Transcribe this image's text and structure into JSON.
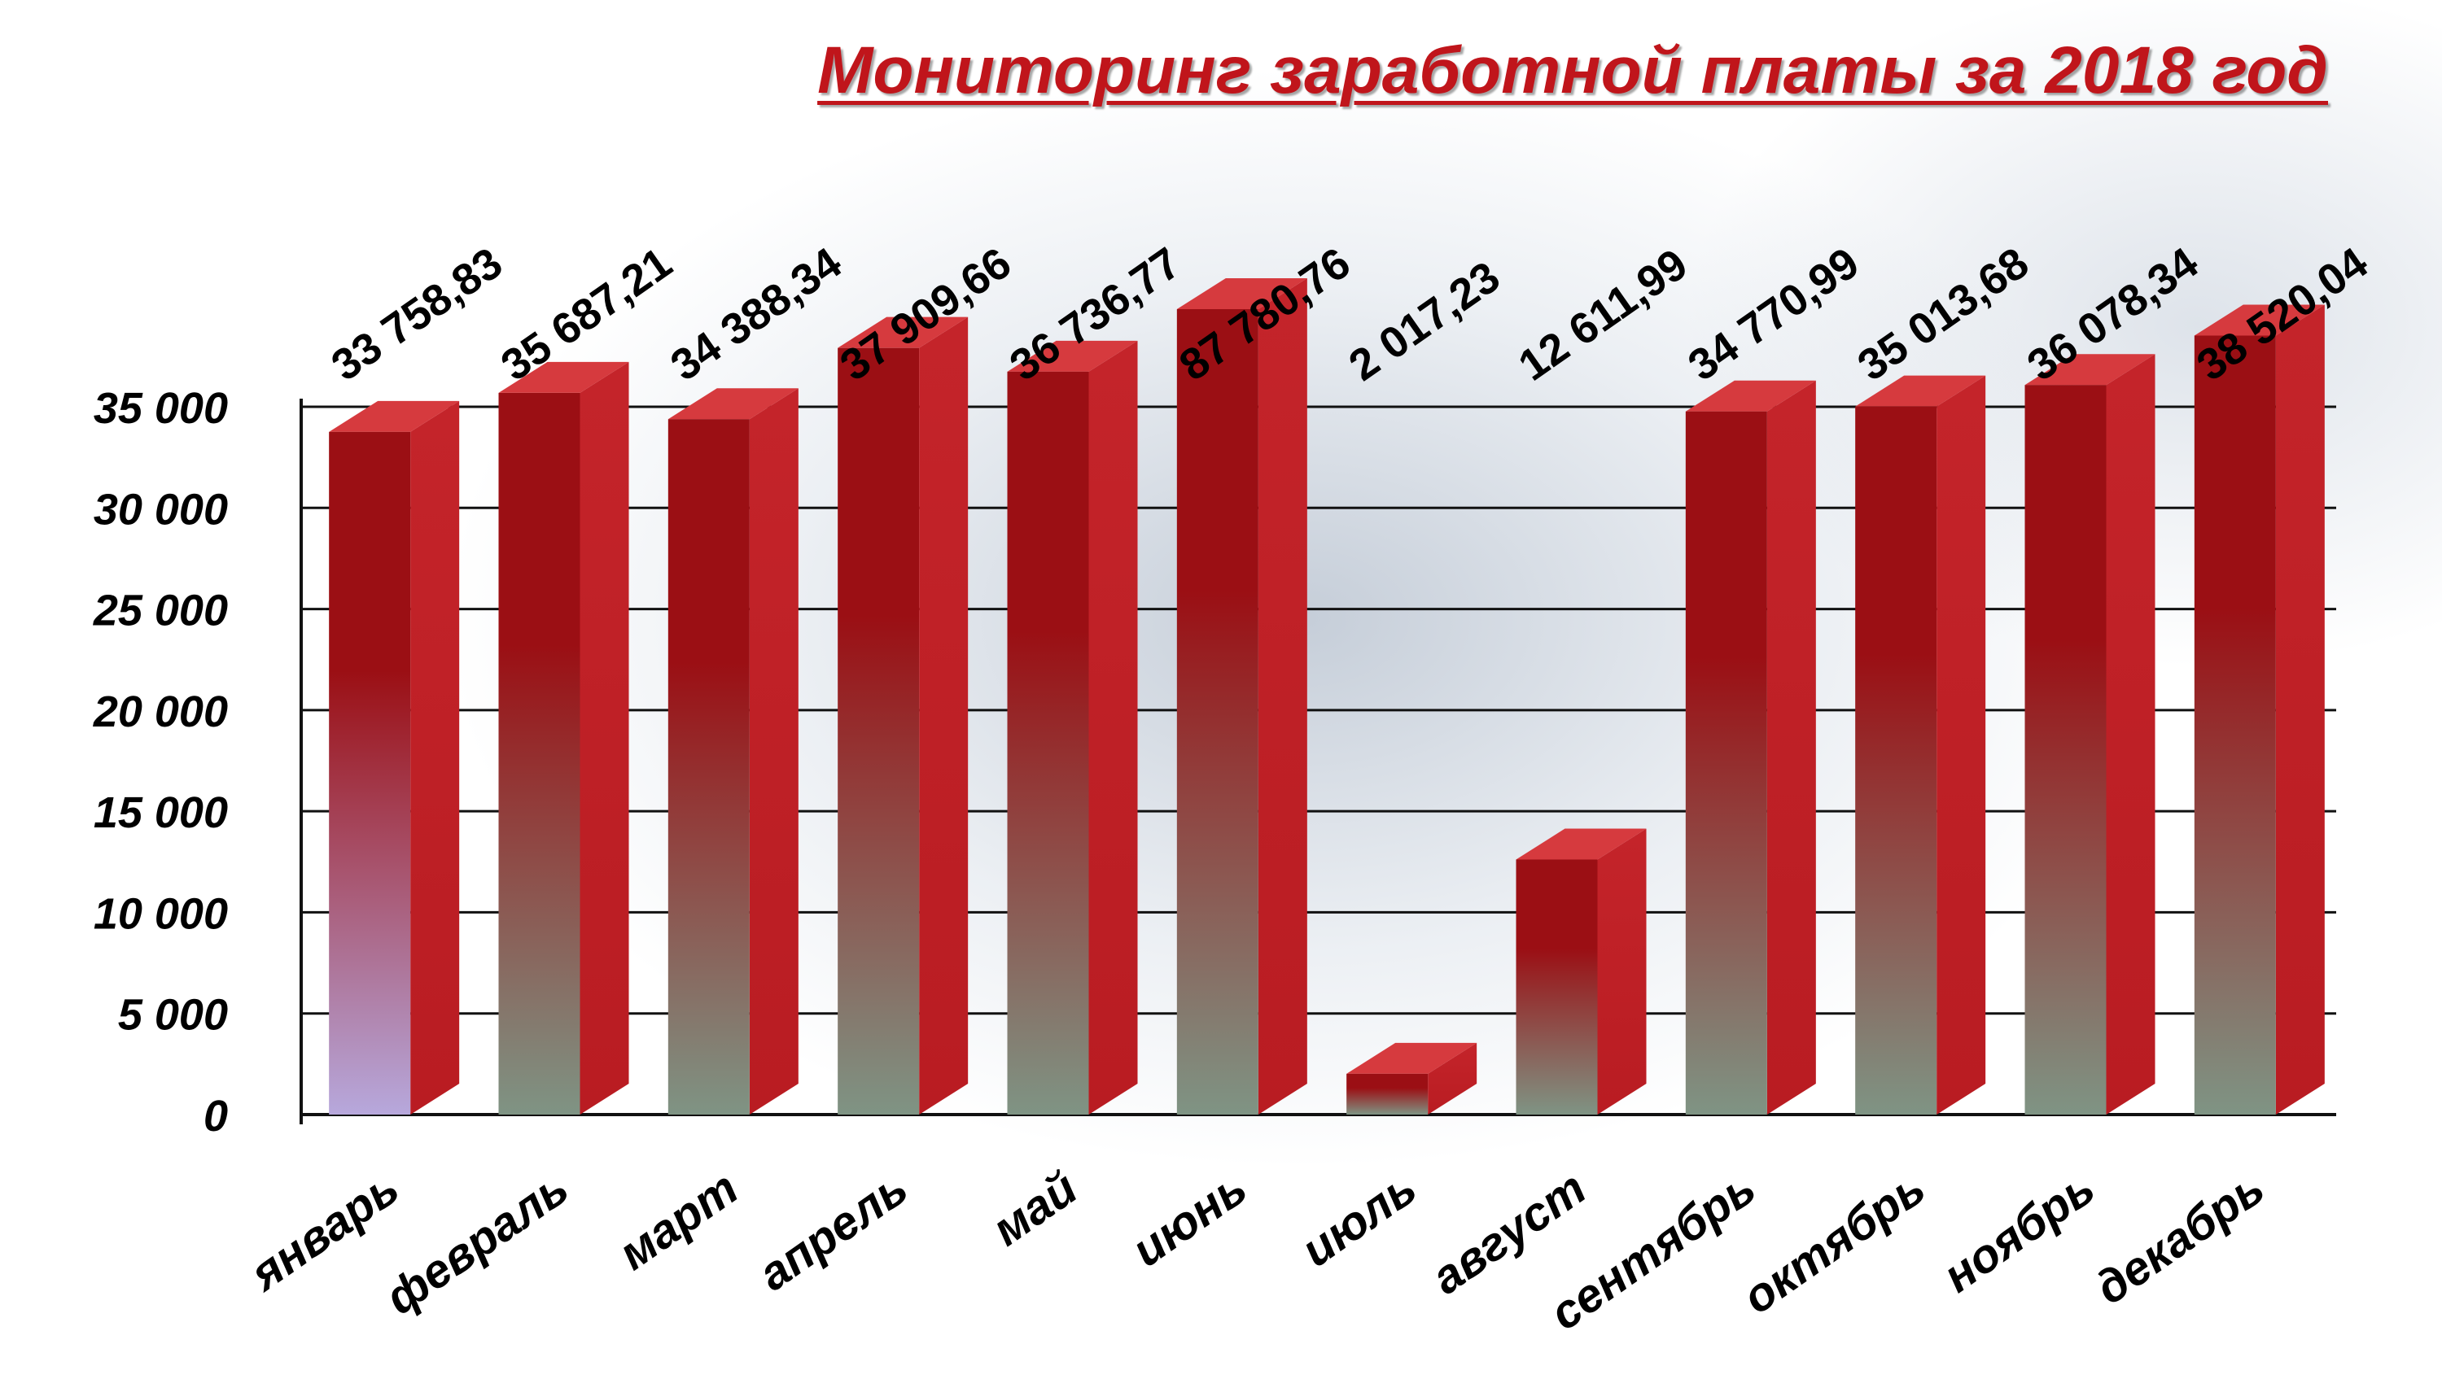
{
  "title": "Мониторинг заработной платы за 2018 год",
  "chart_data": {
    "type": "bar",
    "title": "Мониторинг заработной платы за 2018 год",
    "categories": [
      "январь",
      "февраль",
      "март",
      "апрель",
      "май",
      "июнь",
      "июль",
      "август",
      "сентябрь",
      "октябрь",
      "ноябрь",
      "декабрь"
    ],
    "values": [
      33758.83,
      35687.21,
      34388.34,
      37909.66,
      36736.77,
      87780.76,
      2017.23,
      12611.99,
      34770.99,
      35013.68,
      36078.34,
      38520.04
    ],
    "data_labels": [
      "33 758,83",
      "35 687,21",
      "34 388,34",
      "37 909,66",
      "36 736,77",
      "87 780,76",
      "2 017,23",
      "12 611,99",
      "34 770,99",
      "35 013,68",
      "36 078,34",
      "38 520,04"
    ],
    "yticks": [
      0,
      5000,
      10000,
      15000,
      20000,
      25000,
      30000,
      35000
    ],
    "ytick_labels": [
      "0",
      "5 000",
      "10 000",
      "15 000",
      "20 000",
      "25 000",
      "30 000",
      "35 000"
    ],
    "ylim": [
      0,
      35000
    ],
    "xlabel": "",
    "ylabel": "",
    "grid": true,
    "colors": {
      "bar_front_top": "#9b0f14",
      "bar_front_bottom": "#7f9484",
      "bar_front_bottom_first": "#b7a8dc",
      "bar_side": "#b91c22",
      "bar_top": "#d63a3e",
      "grid": "#111111",
      "title": "#c0151b"
    }
  }
}
